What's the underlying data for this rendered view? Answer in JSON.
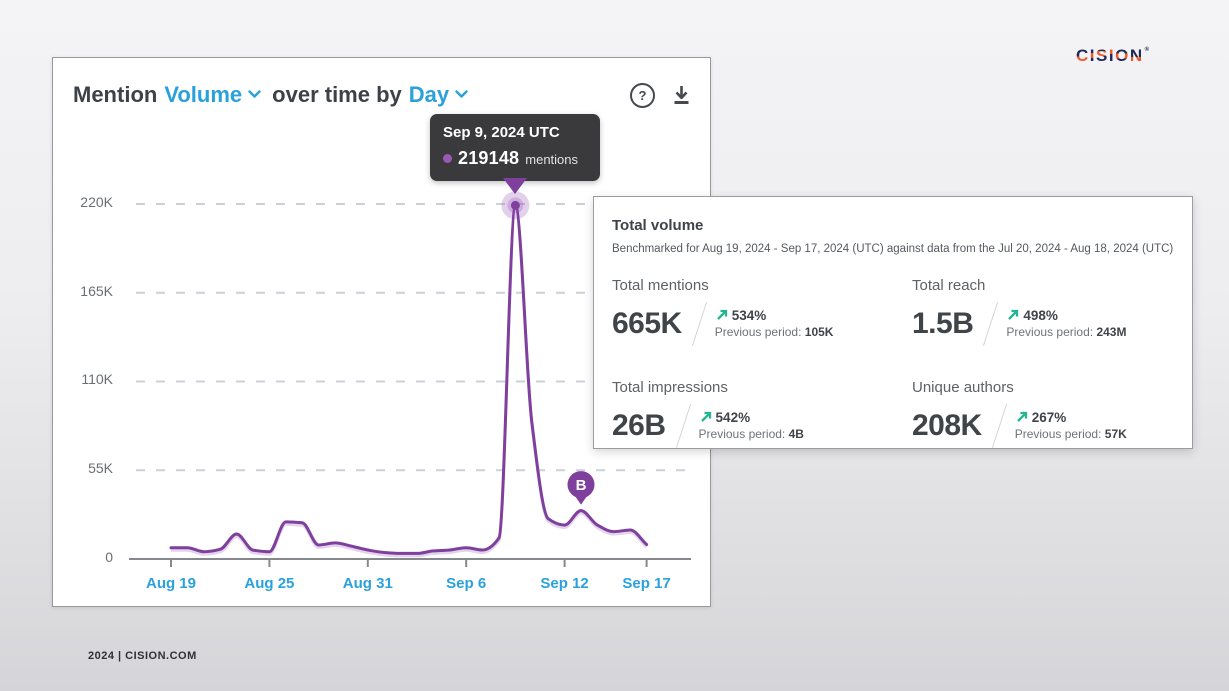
{
  "page": {
    "brand": {
      "name": "CISION",
      "mark": "®"
    },
    "footer": "2024 | CISION.COM"
  },
  "chart_card": {
    "title_prefix": "Mention",
    "metric_selector": "Volume",
    "title_middle": "over time by",
    "interval_selector": "Day",
    "icons": {
      "help": "circled-question-mark",
      "download": "download-arrow"
    },
    "tooltip": {
      "date": "Sep 9, 2024 UTC",
      "value": "219148",
      "unit": "mentions"
    },
    "y_ticks": [
      "220K",
      "165K",
      "110K",
      "55K",
      "0"
    ],
    "x_ticks": [
      "Aug 19",
      "Aug 25",
      "Aug 31",
      "Sep 6",
      "Sep 12",
      "Sep 17"
    ]
  },
  "chart_data": {
    "type": "line",
    "title": "Mention Volume over time by Day",
    "x": [
      "Aug 19",
      "Aug 20",
      "Aug 21",
      "Aug 22",
      "Aug 23",
      "Aug 24",
      "Aug 25",
      "Aug 26",
      "Aug 27",
      "Aug 28",
      "Aug 29",
      "Aug 30",
      "Aug 31",
      "Sep 1",
      "Sep 2",
      "Sep 3",
      "Sep 4",
      "Sep 5",
      "Sep 6",
      "Sep 7",
      "Sep 8",
      "Sep 9",
      "Sep 10",
      "Sep 11",
      "Sep 12",
      "Sep 13",
      "Sep 14",
      "Sep 15",
      "Sep 16",
      "Sep 17"
    ],
    "series": [
      {
        "name": "mentions",
        "color": "#7e3f9d",
        "values": [
          7000,
          7000,
          4500,
          6000,
          15500,
          5500,
          4500,
          23000,
          22500,
          8700,
          10000,
          8000,
          5600,
          4000,
          3500,
          3500,
          5000,
          5600,
          7000,
          5600,
          13000,
          219148,
          85000,
          25000,
          21000,
          30000,
          21000,
          17000,
          18000,
          9000
        ]
      }
    ],
    "xlabel": "",
    "ylabel": "",
    "ylim": [
      0,
      220000
    ],
    "y_tick_values": [
      0,
      55000,
      110000,
      165000,
      220000
    ],
    "y_tick_labels": [
      "0",
      "55K",
      "110K",
      "165K",
      "220K"
    ],
    "x_tick_labels": [
      "Aug 19",
      "Aug 25",
      "Aug 31",
      "Sep 6",
      "Sep 12",
      "Sep 17"
    ],
    "grid": "dashed-horizontal",
    "legend": "none",
    "highlight_point": {
      "x": "Sep 9",
      "value": 219148
    },
    "annotation": {
      "label": "B",
      "x": "Sep 13"
    }
  },
  "stats_card": {
    "title": "Total volume",
    "subtitle": "Benchmarked for Aug 19, 2024 - Sep 17, 2024 (UTC) against data from the Jul 20, 2024 - Aug 18, 2024 (UTC)",
    "metrics": [
      {
        "label": "Total mentions",
        "value": "665K",
        "change": "534%",
        "previous_label": "Previous period:",
        "previous_value": "105K"
      },
      {
        "label": "Total reach",
        "value": "1.5B",
        "change": "498%",
        "previous_label": "Previous period:",
        "previous_value": "243M"
      },
      {
        "label": "Total impressions",
        "value": "26B",
        "change": "542%",
        "previous_label": "Previous period:",
        "previous_value": "4B"
      },
      {
        "label": "Unique authors",
        "value": "208K",
        "change": "267%",
        "previous_label": "Previous period:",
        "previous_value": "57K"
      }
    ]
  },
  "colors": {
    "accent_purple": "#7e3f9d",
    "accent_blue": "#2aa1db",
    "positive_green": "#26b592",
    "brand_navy": "#1e2a5a",
    "brand_orange": "#f05a28",
    "tooltip_bg": "#3a3a3c"
  }
}
